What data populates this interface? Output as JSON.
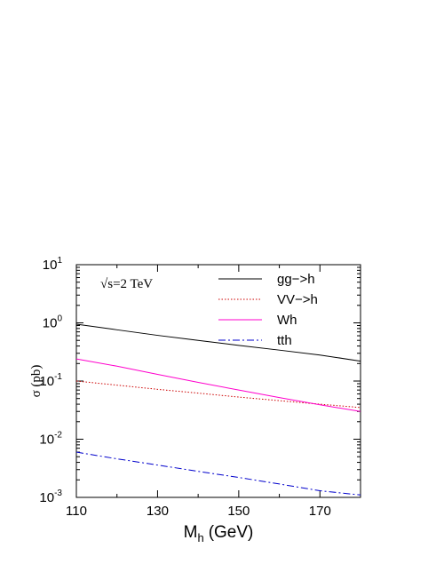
{
  "chart_data": {
    "type": "line",
    "xlabel": "M",
    "xlabel_sub": "h",
    "xlabel_unit": "(GeV)",
    "ylabel": "σ (pb)",
    "annotation": "√s=2 TeV",
    "xlim": [
      110,
      180
    ],
    "ylim": [
      0.001,
      10
    ],
    "yscale": "log",
    "xticks": [
      "110",
      "130",
      "150",
      "170"
    ],
    "yticks": [
      {
        "base": "10",
        "exp": "1"
      },
      {
        "base": "10",
        "exp": "0"
      },
      {
        "base": "10",
        "exp": "-1"
      },
      {
        "base": "10",
        "exp": "-2"
      },
      {
        "base": "10",
        "exp": "-3"
      }
    ],
    "legend_position": "top-right",
    "series": [
      {
        "name": "gg−>h",
        "color": "#000000",
        "dash": "solid",
        "x": [
          110,
          120,
          130,
          140,
          150,
          160,
          170,
          180
        ],
        "y": [
          0.95,
          0.76,
          0.61,
          0.5,
          0.41,
          0.34,
          0.28,
          0.22
        ]
      },
      {
        "name": "VV−>h",
        "color": "#cc0000",
        "dash": "dotted",
        "x": [
          110,
          120,
          130,
          140,
          150,
          160,
          170,
          180
        ],
        "y": [
          0.1,
          0.085,
          0.072,
          0.062,
          0.053,
          0.046,
          0.04,
          0.035
        ]
      },
      {
        "name": "Wh",
        "color": "#ff00cc",
        "dash": "solid",
        "x": [
          110,
          120,
          130,
          140,
          150,
          160,
          170,
          180
        ],
        "y": [
          0.24,
          0.18,
          0.13,
          0.095,
          0.07,
          0.052,
          0.039,
          0.03
        ]
      },
      {
        "name": "tth",
        "color": "#0000cc",
        "dash": "dashdot",
        "x": [
          110,
          120,
          130,
          140,
          150,
          160,
          170,
          180
        ],
        "y": [
          0.006,
          0.0046,
          0.0036,
          0.0028,
          0.0022,
          0.0017,
          0.0013,
          0.0011
        ]
      }
    ]
  }
}
